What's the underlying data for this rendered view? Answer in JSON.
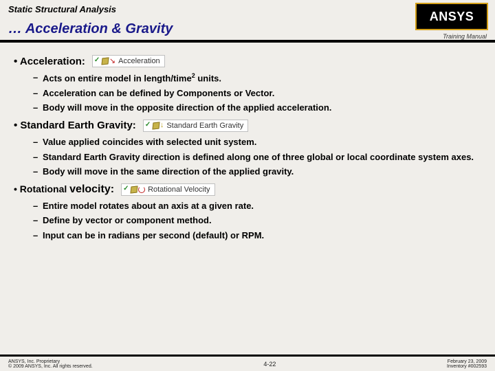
{
  "header": {
    "section": "Static Structural Analysis",
    "title": "… Acceleration & Gravity",
    "training": "Training Manual",
    "logo": "ANSYS"
  },
  "sections": {
    "accel": {
      "heading": "Acceleration:",
      "chip": "Acceleration",
      "items": [
        "Acts on entire model in length/time² units.",
        "Acceleration can be defined by Components or Vector.",
        "Body will move in the opposite direction of the applied acceleration."
      ]
    },
    "gravity": {
      "heading": "Standard Earth Gravity:",
      "chip": "Standard Earth Gravity",
      "items": [
        "Value applied coincides with selected unit system.",
        "Standard Earth Gravity direction is defined along one of three global or local coordinate system axes.",
        "Body will move in the same direction of the applied gravity."
      ]
    },
    "rot": {
      "heading": "Rotational velocity:",
      "chip": "Rotational Velocity",
      "items": [
        "Entire model rotates about an axis at a given rate.",
        "Define by vector or component method.",
        "Input can be in radians per second (default)  or RPM."
      ]
    }
  },
  "footer": {
    "left1": "ANSYS, Inc. Proprietary",
    "left2": "© 2009 ANSYS, Inc. All rights reserved.",
    "page": "4-22",
    "right1": "February 23, 2009",
    "right2": "Inventory #002593"
  },
  "colors": {
    "title": "#1a1a8a",
    "accent_gold": "#d4a018",
    "background": "#f0eeea"
  }
}
